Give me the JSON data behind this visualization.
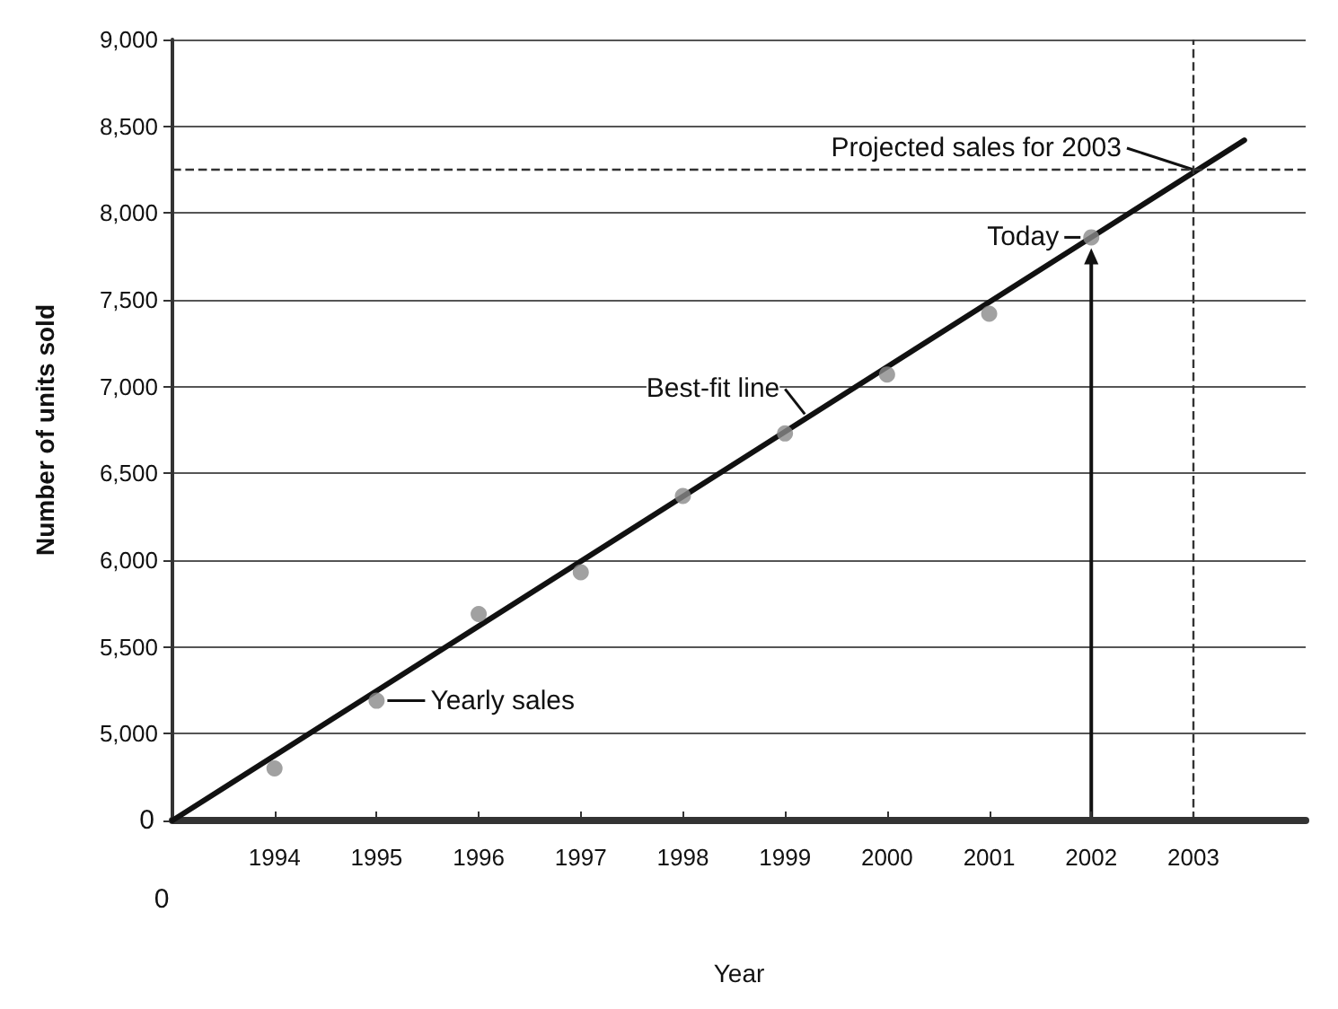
{
  "chart_data": {
    "type": "scatter",
    "xlabel": "Year",
    "ylabel": "Number of units sold",
    "xlim": [
      1993,
      2004.1
    ],
    "ylim": [
      4500,
      9000
    ],
    "xticks": [
      1994,
      1995,
      1996,
      1997,
      1998,
      1999,
      2000,
      2001,
      2002,
      2003
    ],
    "yticks": [
      {
        "value": 4500,
        "label": null
      },
      {
        "value": 5000,
        "label": "5,000"
      },
      {
        "value": 5500,
        "label": "5,500"
      },
      {
        "value": 6000,
        "label": "6,000"
      },
      {
        "value": 6500,
        "label": "6,500"
      },
      {
        "value": 7000,
        "label": "7,000"
      },
      {
        "value": 7500,
        "label": "7,500"
      },
      {
        "value": 8000,
        "label": "8,000"
      },
      {
        "value": 8500,
        "label": "8,500"
      },
      {
        "value": 9000,
        "label": "9,000"
      }
    ],
    "grid": "y",
    "marker": "circle",
    "series": [
      {
        "color": "#8a8a8a",
        "x": [
          1994,
          1995,
          1996,
          1997,
          1998,
          1999,
          2000,
          2001,
          2002
        ],
        "values": [
          4800,
          5190,
          5690,
          5930,
          6370,
          6730,
          7070,
          7420,
          7860
        ]
      },
      {
        "type": "line",
        "color": "#111111",
        "x": [
          1993,
          2003.5
        ],
        "values": [
          4500,
          8420
        ],
        "marker": "none",
        "line_style": "solid"
      }
    ],
    "ref_lines": [
      {
        "axis": "x",
        "value": 2003,
        "color": "#333333",
        "line_style": "dashed"
      },
      {
        "axis": "y",
        "value": 8250,
        "color": "#333333",
        "line_style": "dashed"
      }
    ],
    "annotations": [
      {
        "text": "Projected sales for 2003",
        "x": 2003,
        "y": 8250
      },
      {
        "text": "Today",
        "x": 2002,
        "y": 7860
      },
      {
        "text": "Best-fit line",
        "x": 1999.3,
        "y": 6800
      },
      {
        "text": "Yearly sales",
        "x": 1995,
        "y": 5190
      },
      {
        "text": "0",
        "x": 1993,
        "y": 4500
      },
      {
        "text": "0",
        "x": 1993,
        "y": 4500
      }
    ]
  }
}
